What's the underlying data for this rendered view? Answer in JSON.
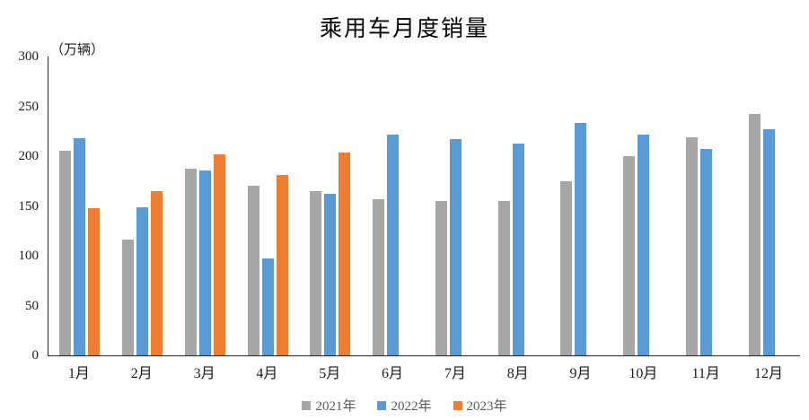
{
  "chart_data": {
    "type": "bar",
    "title": "乘用车月度销量",
    "unit_label": "（万辆）",
    "xlabel": "",
    "ylabel": "万辆",
    "categories": [
      "1月",
      "2月",
      "3月",
      "4月",
      "5月",
      "6月",
      "7月",
      "8月",
      "9月",
      "10月",
      "11月",
      "12月"
    ],
    "series": [
      {
        "name": "2021年",
        "color": "#a6a6a6",
        "values": [
          205,
          116,
          187,
          170,
          165,
          157,
          155,
          155,
          175,
          200,
          219,
          242
        ]
      },
      {
        "name": "2022年",
        "color": "#5b9bd5",
        "values": [
          218,
          149,
          186,
          97,
          162,
          222,
          217,
          213,
          233,
          222,
          207,
          227
        ]
      },
      {
        "name": "2023年",
        "color": "#ed7d31",
        "values": [
          148,
          165,
          202,
          181,
          204,
          null,
          null,
          null,
          null,
          null,
          null,
          null
        ]
      }
    ],
    "ylim": [
      0,
      300
    ],
    "yticks": [
      0,
      50,
      100,
      150,
      200,
      250,
      300
    ],
    "grid": false,
    "legend_position": "bottom",
    "axis_color": "#262626",
    "text_color": "#1a1a1a",
    "legend_text_color": "#595959"
  }
}
